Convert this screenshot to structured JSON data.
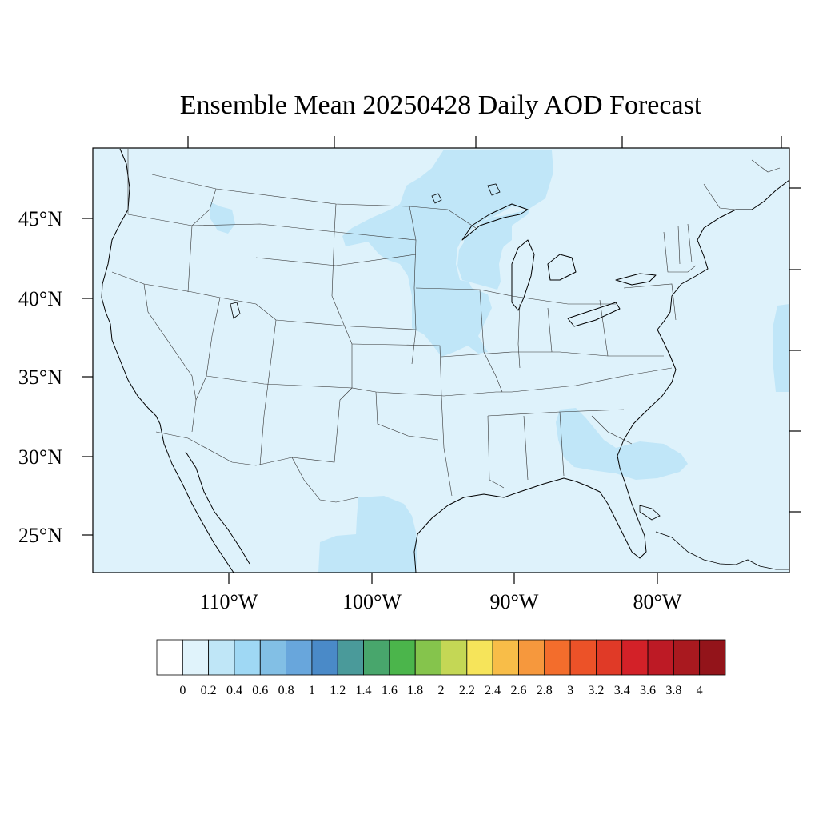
{
  "title": "Ensemble Mean 20250428 Daily AOD Forecast",
  "map": {
    "background_color": "#def2fb",
    "enhanced_color": "#c0e6f8",
    "enhanced_regions": [
      "upper-midwest",
      "iowa-missouri",
      "wisconsin",
      "southeast-georgia-offshore",
      "south-texas-mexico",
      "idaho-small",
      "atlantic-east-edge"
    ],
    "lat_ticks": [
      "45°N",
      "40°N",
      "35°N",
      "30°N",
      "25°N"
    ],
    "lon_ticks": [
      "110°W",
      "100°W",
      "90°W",
      "80°W"
    ]
  },
  "colorbar": {
    "labels": [
      "0",
      "0.2",
      "0.4",
      "0.6",
      "0.8",
      "1",
      "1.2",
      "1.4",
      "1.6",
      "1.8",
      "2",
      "2.2",
      "2.4",
      "2.6",
      "2.8",
      "3",
      "3.2",
      "3.4",
      "3.6",
      "3.8",
      "4"
    ],
    "colors": [
      "#ffffff",
      "#e0f3fb",
      "#bfe6f7",
      "#9fd8f4",
      "#82bfe5",
      "#68a6dc",
      "#4a8ac8",
      "#4a9a9a",
      "#48a66c",
      "#4bb54b",
      "#85c44c",
      "#c4d755",
      "#f6e45a",
      "#f8bd48",
      "#f6983d",
      "#f36d2c",
      "#ec5228",
      "#e03a27",
      "#d32128",
      "#bd1a25",
      "#a9191f",
      "#93141a"
    ]
  }
}
